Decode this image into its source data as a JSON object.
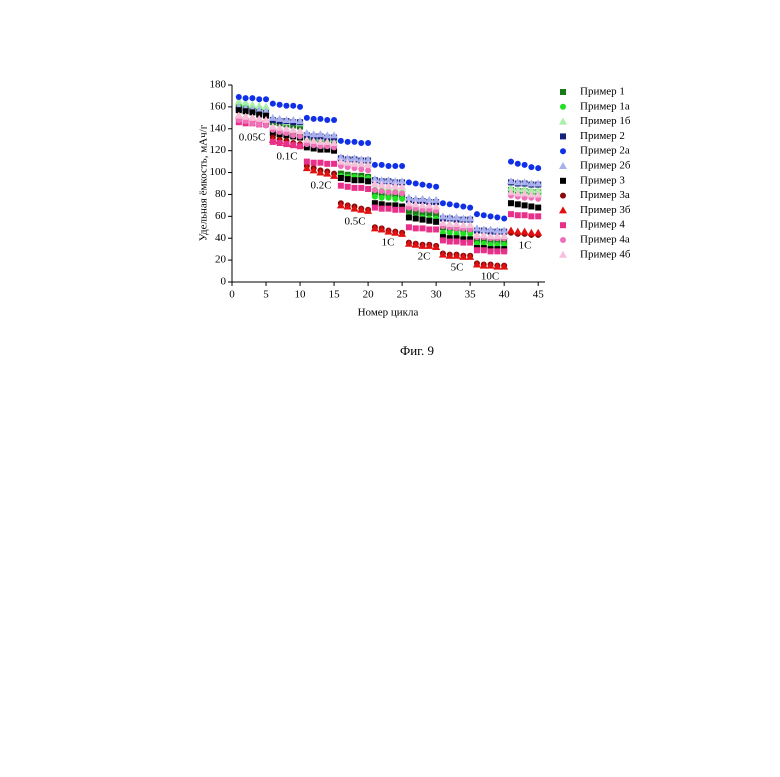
{
  "chart_data": {
    "type": "scatter",
    "x_label": "Номер цикла",
    "y_label": "Удельная ёмкость, мАч/г",
    "caption": "Фиг. 9",
    "annotations": [
      "0.05C",
      "0.1C",
      "0.2C",
      "0.5C",
      "1C",
      "2C",
      "5C",
      "10C",
      "1C"
    ],
    "xlim": [
      0,
      46
    ],
    "ylim": [
      0,
      180
    ],
    "xticks": [
      0,
      5,
      10,
      15,
      20,
      25,
      30,
      35,
      40,
      45
    ],
    "yticks": [
      0,
      20,
      40,
      60,
      80,
      100,
      120,
      140,
      160,
      180
    ],
    "x": [
      1,
      2,
      3,
      4,
      5,
      6,
      7,
      8,
      9,
      10,
      11,
      12,
      13,
      14,
      15,
      16,
      17,
      18,
      19,
      20,
      21,
      22,
      23,
      24,
      25,
      26,
      27,
      28,
      29,
      30,
      31,
      32,
      33,
      34,
      35,
      36,
      37,
      38,
      39,
      40,
      41,
      42,
      43,
      44,
      45
    ],
    "series": [
      {
        "name": "Пример 1",
        "color": "#1a7a1a",
        "marker": "square",
        "values": [
          160,
          159,
          158,
          156,
          155,
          146,
          145,
          144,
          143,
          142,
          132,
          131,
          130,
          130,
          129,
          99,
          98,
          97,
          97,
          96,
          82,
          81,
          80,
          80,
          79,
          65,
          64,
          63,
          63,
          62,
          50,
          49,
          49,
          48,
          48,
          38,
          38,
          37,
          37,
          37,
          84,
          83,
          83,
          82,
          82
        ]
      },
      {
        "name": "Пример 1а",
        "color": "#22e022",
        "marker": "circle",
        "values": [
          163,
          162,
          160,
          159,
          158,
          140,
          139,
          138,
          137,
          136,
          127,
          126,
          126,
          125,
          125,
          97,
          96,
          96,
          95,
          95,
          78,
          77,
          77,
          76,
          76,
          60,
          59,
          59,
          58,
          58,
          45,
          45,
          44,
          44,
          44,
          35,
          35,
          34,
          34,
          34,
          81,
          80,
          80,
          79,
          79
        ]
      },
      {
        "name": "Пример 1б",
        "color": "#a8f0a8",
        "marker": "triangle",
        "values": [
          165,
          164,
          162,
          161,
          160,
          148,
          147,
          146,
          146,
          145,
          134,
          133,
          132,
          132,
          131,
          110,
          109,
          109,
          108,
          108,
          87,
          86,
          86,
          85,
          85,
          71,
          70,
          70,
          69,
          69,
          54,
          53,
          53,
          52,
          52,
          43,
          43,
          42,
          42,
          42,
          86,
          85,
          85,
          84,
          84
        ]
      },
      {
        "name": "Пример 2",
        "color": "#16207a",
        "marker": "square",
        "values": [
          158,
          157,
          156,
          155,
          154,
          148,
          147,
          147,
          146,
          146,
          134,
          133,
          133,
          132,
          132,
          113,
          112,
          112,
          111,
          111,
          93,
          92,
          92,
          91,
          91,
          75,
          74,
          74,
          73,
          73,
          58,
          58,
          57,
          57,
          57,
          47,
          47,
          46,
          46,
          46,
          91,
          90,
          90,
          89,
          89
        ]
      },
      {
        "name": "Пример 2а",
        "color": "#1030e8",
        "marker": "circle",
        "values": [
          169,
          168,
          168,
          167,
          167,
          163,
          162,
          161,
          161,
          160,
          150,
          149,
          149,
          148,
          148,
          129,
          128,
          128,
          127,
          127,
          107,
          107,
          106,
          106,
          106,
          91,
          90,
          89,
          88,
          87,
          72,
          71,
          70,
          69,
          68,
          62,
          61,
          60,
          59,
          58,
          110,
          108,
          107,
          105,
          104
        ]
      },
      {
        "name": "Пример 2б",
        "color": "#a8b0f0",
        "marker": "triangle",
        "values": [
          160,
          159,
          158,
          157,
          156,
          150,
          149,
          148,
          148,
          147,
          136,
          135,
          135,
          134,
          134,
          114,
          113,
          113,
          112,
          112,
          94,
          93,
          93,
          92,
          92,
          77,
          76,
          76,
          75,
          75,
          60,
          59,
          59,
          58,
          58,
          49,
          48,
          48,
          47,
          47,
          92,
          91,
          91,
          90,
          90
        ]
      },
      {
        "name": "Пример 3",
        "color": "#000000",
        "marker": "square",
        "values": [
          157,
          156,
          155,
          153,
          152,
          136,
          135,
          134,
          133,
          132,
          123,
          122,
          121,
          121,
          120,
          95,
          94,
          93,
          93,
          92,
          72,
          71,
          70,
          70,
          69,
          59,
          58,
          57,
          56,
          55,
          41,
          40,
          40,
          39,
          39,
          31,
          31,
          30,
          30,
          30,
          72,
          71,
          70,
          69,
          68
        ]
      },
      {
        "name": "Пример 3а",
        "color": "#8a0a0a",
        "marker": "circle",
        "values": [
          150,
          149,
          148,
          147,
          146,
          132,
          130,
          129,
          127,
          126,
          106,
          104,
          102,
          101,
          99,
          72,
          70,
          69,
          67,
          66,
          50,
          49,
          47,
          46,
          45,
          36,
          35,
          34,
          34,
          33,
          26,
          25,
          25,
          24,
          24,
          17,
          16,
          16,
          15,
          15,
          45,
          44,
          44,
          43,
          43
        ]
      },
      {
        "name": "Пример 3б",
        "color": "#e01010",
        "marker": "triangle",
        "values": [
          152,
          151,
          150,
          149,
          148,
          130,
          129,
          127,
          126,
          125,
          104,
          102,
          100,
          99,
          97,
          70,
          69,
          67,
          66,
          65,
          49,
          48,
          46,
          45,
          44,
          35,
          34,
          33,
          33,
          32,
          25,
          24,
          24,
          23,
          23,
          16,
          15,
          15,
          14,
          14,
          47,
          46,
          46,
          45,
          45
        ]
      },
      {
        "name": "Пример 4",
        "color": "#e8308a",
        "marker": "square",
        "values": [
          146,
          145,
          145,
          144,
          144,
          128,
          127,
          126,
          125,
          124,
          110,
          109,
          109,
          108,
          108,
          88,
          87,
          86,
          86,
          85,
          68,
          67,
          67,
          66,
          66,
          50,
          49,
          49,
          48,
          48,
          38,
          37,
          37,
          36,
          36,
          29,
          29,
          28,
          28,
          28,
          62,
          61,
          61,
          60,
          60
        ]
      },
      {
        "name": "Пример 4а",
        "color": "#f070b8",
        "marker": "circle",
        "values": [
          148,
          147,
          145,
          144,
          143,
          139,
          137,
          136,
          134,
          133,
          126,
          125,
          124,
          124,
          123,
          106,
          105,
          104,
          103,
          102,
          84,
          83,
          82,
          82,
          81,
          68,
          67,
          66,
          66,
          65,
          51,
          50,
          49,
          49,
          48,
          41,
          41,
          40,
          40,
          40,
          79,
          78,
          77,
          77,
          76
        ]
      },
      {
        "name": "Пример 4б",
        "color": "#f8c0dc",
        "marker": "triangle",
        "values": [
          152,
          151,
          150,
          149,
          148,
          142,
          141,
          140,
          139,
          138,
          130,
          129,
          128,
          128,
          127,
          110,
          109,
          108,
          108,
          107,
          90,
          89,
          88,
          88,
          87,
          72,
          71,
          70,
          70,
          69,
          54,
          53,
          53,
          52,
          52,
          43,
          43,
          42,
          42,
          42,
          82,
          81,
          81,
          80,
          80
        ]
      }
    ]
  }
}
